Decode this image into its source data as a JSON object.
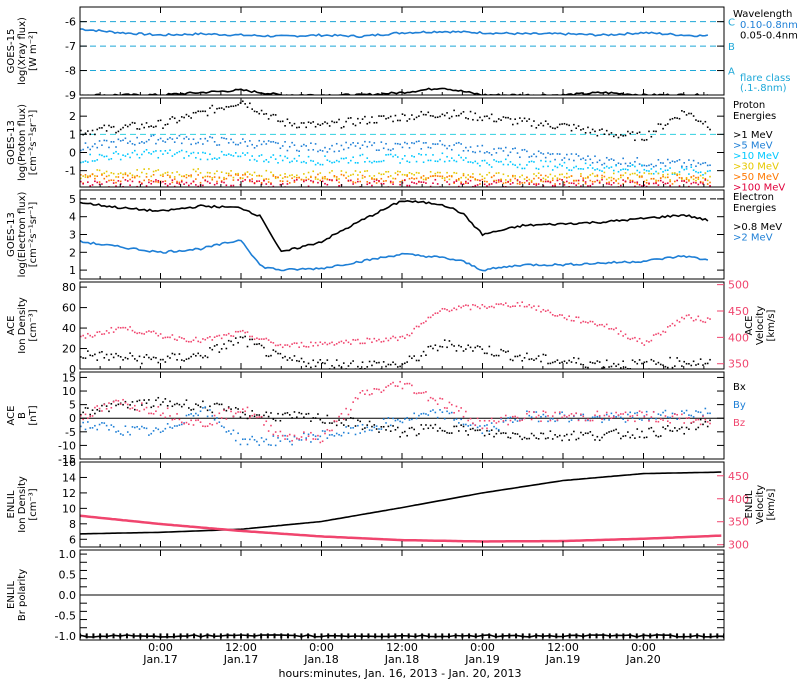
{
  "colors": {
    "black": "#000000",
    "blue": "#1e7fd6",
    "cyan": "#00c8ff",
    "teal": "#00d2aa",
    "green": "#78d200",
    "yellow": "#e6c800",
    "orange": "#ff7800",
    "red": "#e0003c",
    "pink": "#f0456e",
    "ref_dash": "#1ea8d8",
    "proton_dash": "#30d0e0"
  },
  "x_axis": {
    "title": "hours:minutes, Jan. 16, 2013 - Jan. 20, 2013",
    "range_hours": [
      -12,
      84
    ],
    "ticks": [
      {
        "hour": 0,
        "time": "0:00",
        "date": "Jan.17"
      },
      {
        "hour": 12,
        "time": "12:00",
        "date": "Jan.17"
      },
      {
        "hour": 24,
        "time": "0:00",
        "date": "Jan.18"
      },
      {
        "hour": 36,
        "time": "12:00",
        "date": "Jan.18"
      },
      {
        "hour": 48,
        "time": "0:00",
        "date": "Jan.19"
      },
      {
        "hour": 60,
        "time": "12:00",
        "date": "Jan.19"
      },
      {
        "hour": 72,
        "time": "0:00",
        "date": "Jan.20"
      }
    ]
  },
  "chart_data": [
    {
      "id": "xray",
      "type": "line",
      "ylabel": [
        "GOES-15",
        "log(Xray flux)",
        "[W m⁻²]"
      ],
      "ylim": [
        -9,
        -5.4
      ],
      "yticks": [
        -9,
        -8,
        -7,
        -6
      ],
      "ytick_labels": [
        "-9",
        "-8",
        "-7",
        "-6"
      ],
      "ref_lines": [
        {
          "y": -6,
          "label": "C"
        },
        {
          "y": -7,
          "label": "B"
        },
        {
          "y": -8,
          "label": "A"
        }
      ],
      "legend": {
        "title": "Wavelength",
        "entries": [
          {
            "text": "0.10-0.8nm",
            "color": "blue"
          },
          {
            "text": "0.05-0.4nm",
            "color": "black"
          }
        ],
        "footer": [
          "flare class",
          "(.1-.8nm)"
        ]
      },
      "series": [
        {
          "name": "0.10-0.8nm",
          "color": "blue",
          "x": [
            -12,
            -6,
            0,
            6,
            12,
            18,
            24,
            30,
            36,
            42,
            48,
            54,
            60,
            66,
            72,
            78,
            84
          ],
          "y": [
            -6.3,
            -6.45,
            -6.55,
            -6.5,
            -6.55,
            -6.6,
            -6.55,
            -6.6,
            -6.45,
            -6.4,
            -6.45,
            -6.5,
            -6.5,
            -6.55,
            -6.45,
            -6.55,
            -6.6
          ]
        },
        {
          "name": "0.05-0.4nm",
          "color": "black",
          "x": [
            -12,
            -6,
            0,
            6,
            12,
            18,
            24,
            30,
            36,
            42,
            48,
            54,
            60,
            66,
            72,
            78,
            84
          ],
          "y": [
            -9,
            -9,
            -9,
            -8.9,
            -8.8,
            -9,
            -9,
            -9,
            -8.9,
            -8.7,
            -9,
            -9,
            -9,
            -8.9,
            -9,
            -9,
            -9
          ]
        }
      ]
    },
    {
      "id": "proton",
      "type": "line",
      "ylabel": [
        "GOES-13",
        "log(Proton flux)",
        "[cm⁻²s⁻¹sr⁻¹]"
      ],
      "ylim": [
        -1.9,
        3
      ],
      "yticks": [
        -1,
        0,
        1,
        2
      ],
      "ytick_labels": [
        "-1",
        "0",
        "1",
        "2"
      ],
      "ref_lines": [
        {
          "y": 1,
          "label": ""
        }
      ],
      "legend": {
        "title": "Proton Energies",
        "entries": [
          {
            "text": ">1 MeV",
            "color": "black"
          },
          {
            "text": ">5 MeV",
            "color": "blue"
          },
          {
            "text": ">10 MeV",
            "color": "cyan"
          },
          {
            "text": ">30 MeV",
            "color": "yellow"
          },
          {
            "text": ">50 MeV",
            "color": "orange"
          },
          {
            "text": ">100 MeV",
            "color": "red"
          }
        ]
      },
      "series": [
        {
          "name": ">1 MeV",
          "color": "black",
          "x": [
            -12,
            -6,
            0,
            6,
            12,
            18,
            24,
            30,
            36,
            42,
            48,
            54,
            60,
            66,
            72,
            78,
            84
          ],
          "y": [
            1.2,
            1.4,
            1.6,
            2.2,
            2.9,
            1.7,
            1.5,
            1.8,
            2.0,
            2.2,
            2.0,
            1.7,
            1.5,
            1.1,
            0.9,
            2.3,
            1.1
          ]
        },
        {
          "name": ">5 MeV",
          "color": "blue",
          "x": [
            -12,
            -6,
            0,
            6,
            12,
            18,
            24,
            30,
            36,
            42,
            48,
            54,
            60,
            66,
            72,
            78,
            84
          ],
          "y": [
            0.3,
            0.6,
            0.8,
            0.7,
            0.6,
            0.4,
            0.3,
            0.4,
            0.4,
            0.5,
            0.2,
            0.0,
            -0.2,
            -0.4,
            -0.5,
            -0.6,
            -0.7
          ]
        },
        {
          "name": ">10 MeV",
          "color": "cyan",
          "x": [
            -12,
            -6,
            0,
            6,
            12,
            18,
            24,
            30,
            36,
            42,
            48,
            54,
            60,
            66,
            72,
            78,
            84
          ],
          "y": [
            -0.3,
            -0.1,
            0.0,
            -0.1,
            -0.2,
            -0.3,
            -0.4,
            -0.3,
            -0.3,
            -0.2,
            -0.5,
            -0.6,
            -0.7,
            -0.8,
            -0.9,
            -1.0,
            -1.0
          ]
        },
        {
          "name": ">30 MeV",
          "color": "yellow",
          "x": [
            -12,
            -6,
            0,
            6,
            12,
            18,
            24,
            30,
            36,
            42,
            48,
            54,
            60,
            66,
            72,
            78,
            84
          ],
          "y": [
            -1.2,
            -1.1,
            -1.1,
            -1.1,
            -1.2,
            -1.2,
            -1.2,
            -1.2,
            -1.2,
            -1.2,
            -1.3,
            -1.3,
            -1.3,
            -1.3,
            -1.3,
            -1.3,
            -1.3
          ]
        },
        {
          "name": ">50 MeV",
          "color": "orange",
          "x": [
            -12,
            -6,
            0,
            6,
            12,
            18,
            24,
            30,
            36,
            42,
            48,
            54,
            60,
            66,
            72,
            78,
            84
          ],
          "y": [
            -1.4,
            -1.4,
            -1.4,
            -1.4,
            -1.4,
            -1.4,
            -1.4,
            -1.4,
            -1.4,
            -1.4,
            -1.45,
            -1.45,
            -1.45,
            -1.45,
            -1.45,
            -1.45,
            -1.45
          ]
        },
        {
          "name": ">100 MeV",
          "color": "red",
          "x": [
            -12,
            -6,
            0,
            6,
            12,
            18,
            24,
            30,
            36,
            42,
            48,
            54,
            60,
            66,
            72,
            78,
            84
          ],
          "y": [
            -1.7,
            -1.7,
            -1.7,
            -1.7,
            -1.7,
            -1.7,
            -1.7,
            -1.7,
            -1.7,
            -1.7,
            -1.7,
            -1.7,
            -1.7,
            -1.7,
            -1.7,
            -1.7,
            -1.7
          ]
        }
      ]
    },
    {
      "id": "electron",
      "type": "line",
      "ylabel": [
        "GOES-13",
        "log(Electron flux)",
        "[cm⁻²s⁻¹sr⁻¹]"
      ],
      "ylim": [
        0.5,
        5.5
      ],
      "yticks": [
        1,
        2,
        3,
        4,
        5
      ],
      "ytick_labels": [
        "1",
        "2",
        "3",
        "4",
        "5"
      ],
      "ref_lines": [
        {
          "y": 5,
          "label": ""
        }
      ],
      "legend": {
        "title": "Electron Energies",
        "entries": [
          {
            "text": ">0.8 MeV",
            "color": "black"
          },
          {
            "text": ">2 MeV",
            "color": "blue"
          }
        ]
      },
      "series": [
        {
          "name": ">0.8 MeV",
          "color": "black",
          "x": [
            -12,
            -6,
            0,
            6,
            12,
            15,
            18,
            24,
            30,
            36,
            39,
            42,
            45,
            48,
            54,
            60,
            66,
            72,
            78,
            84
          ],
          "y": [
            4.8,
            4.5,
            4.3,
            4.6,
            4.5,
            4.0,
            2.0,
            2.6,
            3.8,
            4.9,
            4.8,
            4.7,
            4.2,
            3.0,
            3.5,
            3.6,
            3.7,
            3.9,
            4.1,
            3.6
          ]
        },
        {
          "name": ">2 MeV",
          "color": "blue",
          "x": [
            -12,
            -6,
            0,
            6,
            12,
            15,
            18,
            24,
            30,
            36,
            39,
            42,
            45,
            48,
            54,
            60,
            66,
            72,
            78,
            84
          ],
          "y": [
            2.6,
            2.3,
            2.0,
            2.2,
            2.7,
            1.2,
            1.0,
            1.1,
            1.5,
            1.9,
            1.8,
            1.7,
            1.5,
            1.0,
            1.3,
            1.3,
            1.4,
            1.5,
            1.8,
            1.4
          ]
        }
      ]
    },
    {
      "id": "ace_plasma",
      "type": "scatter",
      "ylabel": [
        "ACE",
        "Ion Density",
        "[cm⁻³]"
      ],
      "ylim": [
        0,
        85
      ],
      "yticks": [
        0,
        20,
        40,
        60,
        80
      ],
      "ytick_labels": [
        "0",
        "20",
        "40",
        "60",
        "80"
      ],
      "ylabel_right": [
        "ACE",
        "Velocity",
        "[km/s]"
      ],
      "ylim_right": [
        340,
        505
      ],
      "yticks_right": [
        350,
        400,
        450,
        500
      ],
      "ytick_labels_right": [
        "350",
        "400",
        "450",
        "500"
      ],
      "series": [
        {
          "name": "Density",
          "color": "black",
          "axis": "left",
          "x": [
            -12,
            -6,
            0,
            6,
            12,
            18,
            24,
            30,
            36,
            42,
            48,
            54,
            60,
            66,
            72,
            78,
            84
          ],
          "y": [
            15,
            12,
            10,
            14,
            30,
            10,
            6,
            5,
            5,
            25,
            20,
            12,
            8,
            6,
            5,
            8,
            6
          ]
        },
        {
          "name": "Velocity",
          "color": "pink",
          "axis": "right",
          "x": [
            -12,
            -6,
            0,
            6,
            12,
            18,
            24,
            30,
            36,
            42,
            48,
            54,
            60,
            66,
            72,
            78,
            84
          ],
          "y": [
            400,
            420,
            405,
            395,
            410,
            385,
            390,
            395,
            400,
            455,
            460,
            465,
            440,
            425,
            390,
            440,
            430
          ]
        }
      ]
    },
    {
      "id": "ace_mag",
      "type": "scatter",
      "ylabel": [
        "ACE",
        "B",
        "[nT]"
      ],
      "ylim": [
        -15,
        17
      ],
      "yticks": [
        -15,
        -10,
        -5,
        0,
        5,
        10,
        15
      ],
      "ytick_labels": [
        "-15",
        "-10",
        "-5",
        "0",
        "5",
        "10",
        "15"
      ],
      "legend": {
        "title": "",
        "entries": [
          {
            "text": "Bx",
            "color": "black"
          },
          {
            "text": "By",
            "color": "blue"
          },
          {
            "text": "Bz",
            "color": "pink"
          }
        ]
      },
      "series": [
        {
          "name": "Bx",
          "color": "black",
          "x": [
            -12,
            -6,
            0,
            6,
            12,
            18,
            24,
            30,
            36,
            42,
            48,
            54,
            60,
            66,
            72,
            78,
            84
          ],
          "y": [
            3,
            5,
            6,
            5,
            2,
            1,
            0,
            -2,
            -5,
            -3,
            -5,
            -6,
            -6,
            -6,
            -5,
            -4,
            1
          ]
        },
        {
          "name": "By",
          "color": "blue",
          "x": [
            -12,
            -6,
            0,
            6,
            12,
            18,
            24,
            30,
            36,
            42,
            48,
            54,
            60,
            66,
            72,
            78,
            84
          ],
          "y": [
            -2,
            -4,
            -5,
            4,
            -8,
            -8,
            -6,
            -4,
            0,
            2,
            -4,
            1,
            1,
            0,
            1,
            2,
            3
          ]
        },
        {
          "name": "Bz",
          "color": "pink",
          "x": [
            -12,
            -6,
            0,
            6,
            12,
            18,
            24,
            30,
            36,
            42,
            48,
            54,
            60,
            66,
            72,
            78,
            84
          ],
          "y": [
            1,
            6,
            3,
            -2,
            4,
            -6,
            -7,
            9,
            13,
            6,
            -2,
            1,
            1,
            1,
            1,
            0,
            -2
          ]
        }
      ]
    },
    {
      "id": "enlil_plasma",
      "type": "line",
      "ylabel": [
        "ENLIL",
        "Ion Density",
        "[cm⁻³]"
      ],
      "ylim": [
        5,
        16
      ],
      "yticks": [
        6,
        8,
        10,
        12,
        14,
        16
      ],
      "ytick_labels": [
        "6",
        "8",
        "10",
        "12",
        "14",
        "16"
      ],
      "ylabel_right": [
        "ENLIL",
        "Velocity",
        "[km/s]"
      ],
      "ylim_right": [
        295,
        480
      ],
      "yticks_right": [
        300,
        350,
        400,
        450
      ],
      "ytick_labels_right": [
        "300",
        "350",
        "400",
        "450"
      ],
      "series": [
        {
          "name": "Density",
          "color": "black",
          "axis": "left",
          "x": [
            -12,
            0,
            12,
            24,
            36,
            48,
            60,
            72,
            84
          ],
          "y": [
            6.7,
            6.9,
            7.3,
            8.3,
            10.1,
            12.0,
            13.6,
            14.5,
            14.7
          ]
        },
        {
          "name": "Velocity",
          "color": "pink",
          "axis": "right",
          "x": [
            -12,
            0,
            12,
            24,
            36,
            48,
            60,
            72,
            84
          ],
          "y": [
            363,
            345,
            330,
            318,
            310,
            307,
            308,
            313,
            320
          ]
        }
      ]
    },
    {
      "id": "enlil_polarity",
      "type": "line",
      "ylabel": [
        "ENLIL",
        "Br polarity"
      ],
      "ylim": [
        -1.1,
        1.1
      ],
      "yticks": [
        -1,
        -0.8,
        -0.6,
        -0.4,
        -0.2,
        0,
        0.2,
        0.4,
        0.6,
        0.8,
        1
      ],
      "ytick_labels": [
        "-1.0",
        "-0.5",
        "0.0",
        "0.5",
        "1.0"
      ],
      "ytick_label_values": [
        -1,
        -0.5,
        0,
        0.5,
        1
      ],
      "series": [
        {
          "name": "Polarity",
          "color": "black",
          "x": [
            -12,
            84
          ],
          "y": [
            -1,
            -1
          ]
        }
      ]
    }
  ]
}
